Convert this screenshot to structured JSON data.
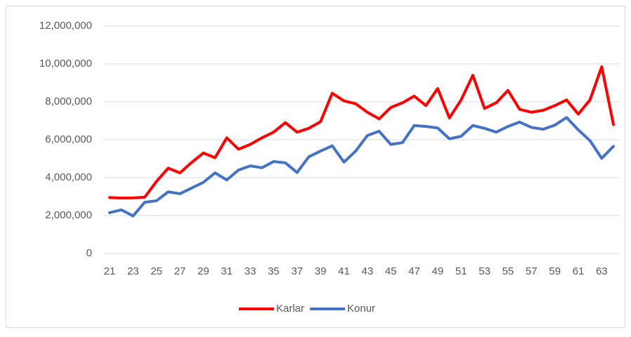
{
  "chart_data": {
    "type": "line",
    "categories": [
      "21",
      null,
      "23",
      null,
      "25",
      null,
      "27",
      null,
      "29",
      null,
      "31",
      null,
      "33",
      null,
      "35",
      null,
      "37",
      null,
      "39",
      null,
      "41",
      null,
      "43",
      null,
      "45",
      null,
      "47",
      null,
      "49",
      null,
      "51",
      null,
      "53",
      null,
      "55",
      null,
      "57",
      null,
      "59",
      null,
      "61",
      null,
      "63",
      null
    ],
    "series": [
      {
        "name": "Karlar",
        "color": "#ff0000",
        "values": [
          2950000,
          2920000,
          2930000,
          2970000,
          3800000,
          4500000,
          4250000,
          4800000,
          5300000,
          5050000,
          6100000,
          5500000,
          5750000,
          6100000,
          6400000,
          6900000,
          6400000,
          6600000,
          6950000,
          8450000,
          8050000,
          7900000,
          7450000,
          7100000,
          7700000,
          7950000,
          8300000,
          7800000,
          8700000,
          7150000,
          8100000,
          9400000,
          7650000,
          7950000,
          8600000,
          7600000,
          7450000,
          7550000,
          7800000,
          8100000,
          7350000,
          8100000,
          9850000,
          6800000
        ]
      },
      {
        "name": "Konur",
        "color": "#4472c4",
        "values": [
          2150000,
          2300000,
          1980000,
          2700000,
          2780000,
          3250000,
          3150000,
          3450000,
          3750000,
          4250000,
          3880000,
          4400000,
          4620000,
          4520000,
          4850000,
          4780000,
          4270000,
          5100000,
          5400000,
          5680000,
          4820000,
          5400000,
          6220000,
          6450000,
          5750000,
          5850000,
          6750000,
          6700000,
          6620000,
          6050000,
          6180000,
          6750000,
          6600000,
          6400000,
          6700000,
          6930000,
          6650000,
          6550000,
          6770000,
          7170000,
          6520000,
          5950000,
          5020000,
          5650000
        ]
      }
    ],
    "ylim": [
      0,
      12000000
    ],
    "yticks": [
      0,
      {
        "value": 2000000,
        "label": "2,000,000"
      },
      {
        "value": 4000000,
        "label": "4,000,000"
      },
      {
        "value": 6000000,
        "label": "6,000,000"
      },
      {
        "value": 8000000,
        "label": "8,000,000"
      },
      {
        "value": 10000000,
        "label": "10,000,000"
      },
      {
        "value": 12000000,
        "label": "12,000,000"
      }
    ],
    "grid": true,
    "legend": "bottom"
  }
}
